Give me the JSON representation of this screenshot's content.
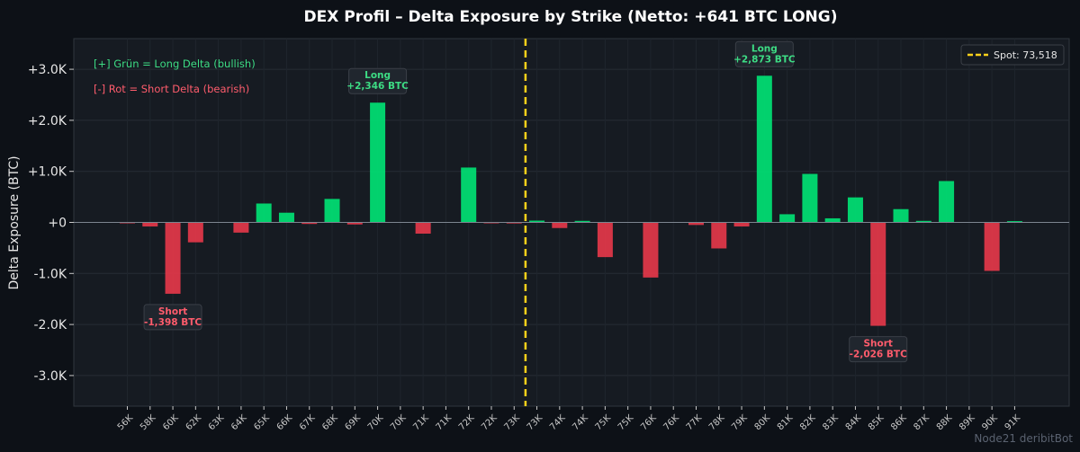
{
  "chart_data": {
    "type": "bar",
    "title": "DEX Profil – Delta Exposure by Strike (Netto: +641 BTC LONG)",
    "ylabel": "Delta Exposure (BTC)",
    "ylim": [
      -3600,
      3600
    ],
    "yticks": [
      {
        "value": 3000,
        "label": "+3.0K"
      },
      {
        "value": 2000,
        "label": "+2.0K"
      },
      {
        "value": 1000,
        "label": "+1.0K"
      },
      {
        "value": 0,
        "label": "+0"
      },
      {
        "value": -1000,
        "label": "-1.0K"
      },
      {
        "value": -2000,
        "label": "-2.0K"
      },
      {
        "value": -3000,
        "label": "-3.0K"
      }
    ],
    "categories": [
      "56K",
      "58K",
      "60K",
      "62K",
      "63K",
      "64K",
      "65K",
      "66K",
      "67K",
      "68K",
      "69K",
      "70K",
      "70K",
      "71K",
      "71K",
      "72K",
      "72K",
      "73K",
      "73K",
      "74K",
      "74K",
      "75K",
      "75K",
      "76K",
      "76K",
      "77K",
      "78K",
      "79K",
      "80K",
      "81K",
      "82K",
      "83K",
      "84K",
      "85K",
      "86K",
      "87K",
      "88K",
      "89K",
      "90K",
      "91K"
    ],
    "values": [
      -10,
      -80,
      -1398,
      -390,
      0,
      -200,
      370,
      190,
      -30,
      460,
      -40,
      2346,
      0,
      -220,
      0,
      1075,
      -10,
      -20,
      35,
      -110,
      30,
      -680,
      0,
      -1080,
      0,
      -50,
      -510,
      -80,
      2873,
      160,
      950,
      80,
      490,
      -2026,
      260,
      30,
      810,
      0,
      -950,
      25
    ],
    "colors": {
      "positive": "#00e676",
      "negative": "#e8394a",
      "spot": "#ffd11a",
      "background": "#161b22"
    },
    "spot": {
      "position_index": 17.5,
      "label": "Spot: 73,518"
    },
    "legend_placement": "top-right",
    "grid": true,
    "legend_notes": [
      {
        "text": "[+] Grün = Long Delta (bullish)",
        "color": "#3ddc84"
      },
      {
        "text": "[-] Rot = Short Delta (bearish)",
        "color": "#ff5c6c"
      }
    ],
    "annotations": [
      {
        "index": 2,
        "value": -1398,
        "label_line1": "Short",
        "label_line2": "-1,398 BTC",
        "kind": "short"
      },
      {
        "index": 11,
        "value": 2346,
        "label_line1": "Long",
        "label_line2": "+2,346 BTC",
        "kind": "long"
      },
      {
        "index": 28,
        "value": 2873,
        "label_line1": "Long",
        "label_line2": "+2,873 BTC",
        "kind": "long"
      },
      {
        "index": 33,
        "value": -2026,
        "label_line1": "Short",
        "label_line2": "-2,026 BTC",
        "kind": "short"
      }
    ]
  },
  "watermark": "Node21 deribitBot"
}
